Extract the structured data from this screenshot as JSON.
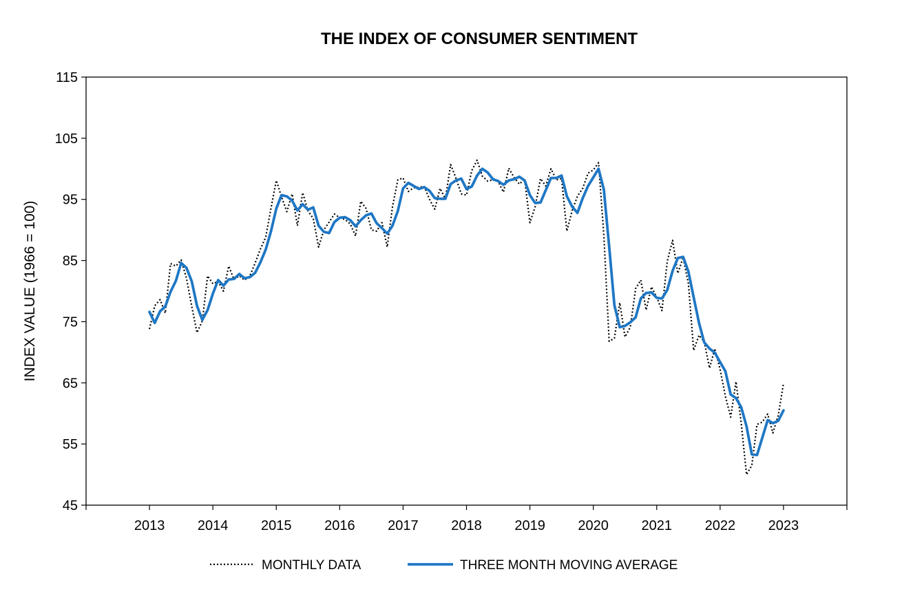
{
  "chart_data": {
    "type": "line",
    "title": "THE INDEX OF CONSUMER SENTIMENT",
    "ylabel": "INDEX VALUE (1966 = 100)",
    "xlabel": "",
    "ylim": [
      45,
      115
    ],
    "yticks": [
      45,
      55,
      65,
      75,
      85,
      95,
      105,
      115
    ],
    "xlim": [
      2012,
      2024
    ],
    "xtick_labels": [
      "2013",
      "2014",
      "2015",
      "2016",
      "2017",
      "2018",
      "2019",
      "2020",
      "2021",
      "2022",
      "2023"
    ],
    "xtick_values": [
      2013,
      2014,
      2015,
      2016,
      2017,
      2018,
      2019,
      2020,
      2021,
      2022,
      2023
    ],
    "grid": false,
    "legend_position": "bottom",
    "series": [
      {
        "name": "MONTHLY DATA",
        "style": "dotted",
        "color": "#000000",
        "points": [
          [
            2013.0,
            73.8
          ],
          [
            2013.083,
            77.6
          ],
          [
            2013.167,
            78.6
          ],
          [
            2013.25,
            76.4
          ],
          [
            2013.333,
            84.5
          ],
          [
            2013.417,
            84.1
          ],
          [
            2013.5,
            85.1
          ],
          [
            2013.583,
            82.1
          ],
          [
            2013.667,
            77.5
          ],
          [
            2013.75,
            73.2
          ],
          [
            2013.833,
            75.1
          ],
          [
            2013.917,
            82.5
          ],
          [
            2014.0,
            81.2
          ],
          [
            2014.083,
            81.6
          ],
          [
            2014.167,
            80.0
          ],
          [
            2014.25,
            84.1
          ],
          [
            2014.333,
            81.9
          ],
          [
            2014.417,
            82.5
          ],
          [
            2014.5,
            81.8
          ],
          [
            2014.583,
            82.5
          ],
          [
            2014.667,
            84.6
          ],
          [
            2014.75,
            86.9
          ],
          [
            2014.833,
            88.8
          ],
          [
            2014.917,
            93.6
          ],
          [
            2015.0,
            98.1
          ],
          [
            2015.083,
            95.4
          ],
          [
            2015.167,
            93.0
          ],
          [
            2015.25,
            95.9
          ],
          [
            2015.333,
            90.7
          ],
          [
            2015.417,
            96.1
          ],
          [
            2015.5,
            93.1
          ],
          [
            2015.583,
            91.9
          ],
          [
            2015.667,
            87.2
          ],
          [
            2015.75,
            90.0
          ],
          [
            2015.833,
            91.3
          ],
          [
            2015.917,
            92.6
          ],
          [
            2016.0,
            92.0
          ],
          [
            2016.083,
            91.7
          ],
          [
            2016.167,
            91.0
          ],
          [
            2016.25,
            89.0
          ],
          [
            2016.333,
            94.7
          ],
          [
            2016.417,
            93.5
          ],
          [
            2016.5,
            90.0
          ],
          [
            2016.583,
            89.8
          ],
          [
            2016.667,
            91.2
          ],
          [
            2016.75,
            87.2
          ],
          [
            2016.833,
            93.8
          ],
          [
            2016.917,
            98.2
          ],
          [
            2017.0,
            98.5
          ],
          [
            2017.083,
            96.3
          ],
          [
            2017.167,
            96.9
          ],
          [
            2017.25,
            97.0
          ],
          [
            2017.333,
            97.1
          ],
          [
            2017.417,
            95.0
          ],
          [
            2017.5,
            93.4
          ],
          [
            2017.583,
            96.8
          ],
          [
            2017.667,
            95.1
          ],
          [
            2017.75,
            100.7
          ],
          [
            2017.833,
            98.5
          ],
          [
            2017.917,
            95.9
          ],
          [
            2018.0,
            95.7
          ],
          [
            2018.083,
            99.7
          ],
          [
            2018.167,
            101.4
          ],
          [
            2018.25,
            98.8
          ],
          [
            2018.333,
            98.0
          ],
          [
            2018.417,
            98.2
          ],
          [
            2018.5,
            97.9
          ],
          [
            2018.583,
            96.2
          ],
          [
            2018.667,
            100.1
          ],
          [
            2018.75,
            98.6
          ],
          [
            2018.833,
            97.5
          ],
          [
            2018.917,
            98.3
          ],
          [
            2019.0,
            91.2
          ],
          [
            2019.083,
            93.8
          ],
          [
            2019.167,
            98.4
          ],
          [
            2019.25,
            97.2
          ],
          [
            2019.333,
            100.0
          ],
          [
            2019.417,
            98.2
          ],
          [
            2019.5,
            98.4
          ],
          [
            2019.583,
            89.8
          ],
          [
            2019.667,
            93.2
          ],
          [
            2019.75,
            95.5
          ],
          [
            2019.833,
            96.8
          ],
          [
            2019.917,
            99.3
          ],
          [
            2020.0,
            99.8
          ],
          [
            2020.083,
            101.0
          ],
          [
            2020.167,
            89.1
          ],
          [
            2020.25,
            71.8
          ],
          [
            2020.333,
            72.3
          ],
          [
            2020.417,
            78.1
          ],
          [
            2020.5,
            72.5
          ],
          [
            2020.583,
            74.1
          ],
          [
            2020.667,
            80.4
          ],
          [
            2020.75,
            81.8
          ],
          [
            2020.833,
            76.9
          ],
          [
            2020.917,
            80.7
          ],
          [
            2021.0,
            79.0
          ],
          [
            2021.083,
            76.8
          ],
          [
            2021.167,
            84.9
          ],
          [
            2021.25,
            88.3
          ],
          [
            2021.333,
            82.9
          ],
          [
            2021.417,
            85.5
          ],
          [
            2021.5,
            81.2
          ],
          [
            2021.583,
            70.3
          ],
          [
            2021.667,
            72.8
          ],
          [
            2021.75,
            71.7
          ],
          [
            2021.833,
            67.4
          ],
          [
            2021.917,
            70.6
          ],
          [
            2022.0,
            67.2
          ],
          [
            2022.083,
            62.8
          ],
          [
            2022.167,
            59.4
          ],
          [
            2022.25,
            65.2
          ],
          [
            2022.333,
            58.4
          ],
          [
            2022.417,
            50.0
          ],
          [
            2022.5,
            51.5
          ],
          [
            2022.583,
            58.2
          ],
          [
            2022.667,
            58.6
          ],
          [
            2022.75,
            59.9
          ],
          [
            2022.833,
            56.8
          ],
          [
            2022.917,
            59.7
          ],
          [
            2023.0,
            64.9
          ]
        ]
      },
      {
        "name": "THREE MONTH MOVING AVERAGE",
        "style": "solid",
        "color": "#1f77c4",
        "points": [
          [
            2013.0,
            76.6
          ],
          [
            2013.083,
            74.8
          ],
          [
            2013.167,
            76.7
          ],
          [
            2013.25,
            77.5
          ],
          [
            2013.333,
            79.9
          ],
          [
            2013.417,
            81.7
          ],
          [
            2013.5,
            84.6
          ],
          [
            2013.583,
            83.8
          ],
          [
            2013.667,
            81.6
          ],
          [
            2013.75,
            77.6
          ],
          [
            2013.833,
            75.3
          ],
          [
            2013.917,
            76.9
          ],
          [
            2014.0,
            79.6
          ],
          [
            2014.083,
            81.8
          ],
          [
            2014.167,
            80.9
          ],
          [
            2014.25,
            81.9
          ],
          [
            2014.333,
            82.0
          ],
          [
            2014.417,
            82.8
          ],
          [
            2014.5,
            82.1
          ],
          [
            2014.583,
            82.3
          ],
          [
            2014.667,
            83.0
          ],
          [
            2014.75,
            84.7
          ],
          [
            2014.833,
            86.8
          ],
          [
            2014.917,
            89.8
          ],
          [
            2015.0,
            93.5
          ],
          [
            2015.083,
            95.7
          ],
          [
            2015.167,
            95.5
          ],
          [
            2015.25,
            94.8
          ],
          [
            2015.333,
            93.2
          ],
          [
            2015.417,
            94.2
          ],
          [
            2015.5,
            93.3
          ],
          [
            2015.583,
            93.7
          ],
          [
            2015.667,
            90.7
          ],
          [
            2015.75,
            89.7
          ],
          [
            2015.833,
            89.5
          ],
          [
            2015.917,
            91.3
          ],
          [
            2016.0,
            92.0
          ],
          [
            2016.083,
            92.1
          ],
          [
            2016.167,
            91.6
          ],
          [
            2016.25,
            90.6
          ],
          [
            2016.333,
            91.6
          ],
          [
            2016.417,
            92.4
          ],
          [
            2016.5,
            92.7
          ],
          [
            2016.583,
            91.1
          ],
          [
            2016.667,
            90.3
          ],
          [
            2016.75,
            89.4
          ],
          [
            2016.833,
            90.7
          ],
          [
            2016.917,
            93.1
          ],
          [
            2017.0,
            96.8
          ],
          [
            2017.083,
            97.7
          ],
          [
            2017.167,
            97.2
          ],
          [
            2017.25,
            96.7
          ],
          [
            2017.333,
            97.0
          ],
          [
            2017.417,
            96.4
          ],
          [
            2017.5,
            95.2
          ],
          [
            2017.583,
            95.1
          ],
          [
            2017.667,
            95.1
          ],
          [
            2017.75,
            97.5
          ],
          [
            2017.833,
            98.1
          ],
          [
            2017.917,
            98.4
          ],
          [
            2018.0,
            96.7
          ],
          [
            2018.083,
            97.1
          ],
          [
            2018.167,
            98.9
          ],
          [
            2018.25,
            100.0
          ],
          [
            2018.333,
            99.4
          ],
          [
            2018.417,
            98.3
          ],
          [
            2018.5,
            98.0
          ],
          [
            2018.583,
            97.4
          ],
          [
            2018.667,
            98.1
          ],
          [
            2018.75,
            98.3
          ],
          [
            2018.833,
            98.7
          ],
          [
            2018.917,
            98.1
          ],
          [
            2019.0,
            95.7
          ],
          [
            2019.083,
            94.4
          ],
          [
            2019.167,
            94.5
          ],
          [
            2019.25,
            96.5
          ],
          [
            2019.333,
            98.5
          ],
          [
            2019.417,
            98.5
          ],
          [
            2019.5,
            98.9
          ],
          [
            2019.583,
            95.5
          ],
          [
            2019.667,
            93.8
          ],
          [
            2019.75,
            92.8
          ],
          [
            2019.833,
            95.2
          ],
          [
            2019.917,
            97.2
          ],
          [
            2020.0,
            98.6
          ],
          [
            2020.083,
            100.0
          ],
          [
            2020.167,
            96.6
          ],
          [
            2020.25,
            87.3
          ],
          [
            2020.333,
            77.7
          ],
          [
            2020.417,
            74.1
          ],
          [
            2020.5,
            74.3
          ],
          [
            2020.583,
            74.9
          ],
          [
            2020.667,
            75.7
          ],
          [
            2020.75,
            78.8
          ],
          [
            2020.833,
            79.7
          ],
          [
            2020.917,
            79.8
          ],
          [
            2021.0,
            78.9
          ],
          [
            2021.083,
            78.8
          ],
          [
            2021.167,
            80.2
          ],
          [
            2021.25,
            83.3
          ],
          [
            2021.333,
            85.4
          ],
          [
            2021.417,
            85.6
          ],
          [
            2021.5,
            83.2
          ],
          [
            2021.583,
            79.0
          ],
          [
            2021.667,
            74.8
          ],
          [
            2021.75,
            71.6
          ],
          [
            2021.833,
            70.6
          ],
          [
            2021.917,
            69.9
          ],
          [
            2022.0,
            68.4
          ],
          [
            2022.083,
            66.9
          ],
          [
            2022.167,
            63.1
          ],
          [
            2022.25,
            62.5
          ],
          [
            2022.333,
            61.0
          ],
          [
            2022.417,
            57.9
          ],
          [
            2022.5,
            53.3
          ],
          [
            2022.583,
            53.2
          ],
          [
            2022.667,
            56.1
          ],
          [
            2022.75,
            58.9
          ],
          [
            2022.833,
            58.4
          ],
          [
            2022.917,
            58.8
          ],
          [
            2023.0,
            60.5
          ]
        ]
      }
    ]
  }
}
